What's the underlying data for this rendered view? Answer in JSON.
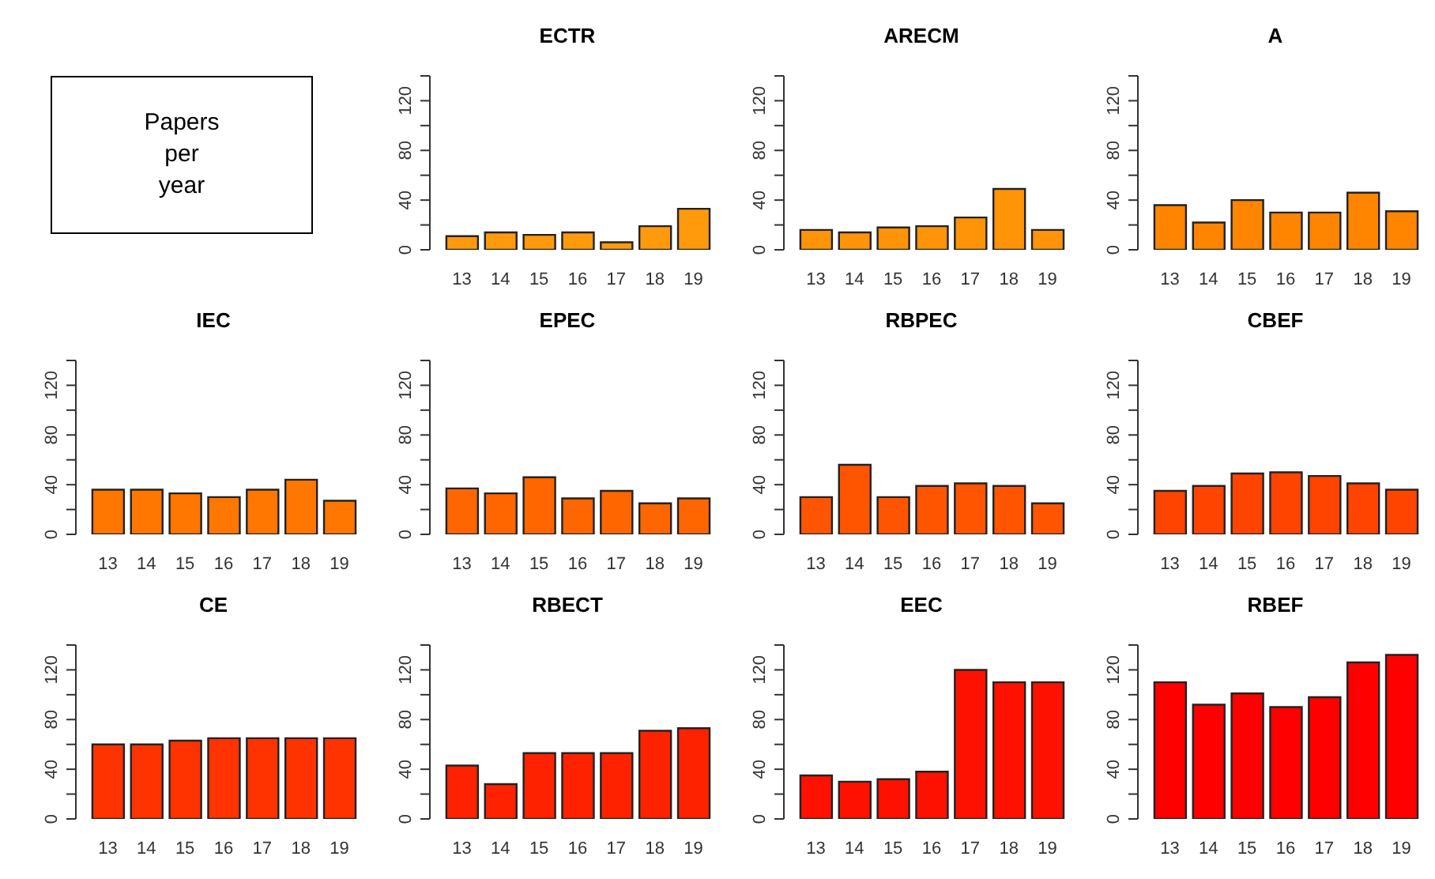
{
  "chart_data": [
    {
      "type": "other",
      "annotations": [
        "Papers per year"
      ]
    },
    {
      "type": "bar",
      "title": "ECTR",
      "categories": [
        "13",
        "14",
        "15",
        "16",
        "17",
        "18",
        "19"
      ],
      "values": [
        11,
        14,
        12,
        14,
        6,
        19,
        33
      ],
      "color": "#ff9a0d",
      "ylim": [
        0,
        140
      ],
      "yticks": [
        0,
        {
          "value": 20,
          "label": null
        },
        40,
        {
          "value": 60,
          "label": null
        },
        80,
        {
          "value": 100,
          "label": null
        },
        120,
        {
          "value": 140,
          "label": null
        }
      ]
    },
    {
      "type": "bar",
      "title": "ARECM",
      "categories": [
        "13",
        "14",
        "15",
        "16",
        "17",
        "18",
        "19"
      ],
      "values": [
        16,
        14,
        18,
        19,
        26,
        49,
        16
      ],
      "color": "#ff9408",
      "ylim": [
        0,
        140
      ],
      "yticks": [
        0,
        {
          "value": 20,
          "label": null
        },
        40,
        {
          "value": 60,
          "label": null
        },
        80,
        {
          "value": 100,
          "label": null
        },
        120,
        {
          "value": 140,
          "label": null
        }
      ]
    },
    {
      "type": "bar",
      "title": "A",
      "categories": [
        "13",
        "14",
        "15",
        "16",
        "17",
        "18",
        "19"
      ],
      "values": [
        36,
        22,
        40,
        30,
        30,
        46,
        31
      ],
      "color": "#ff8500",
      "ylim": [
        0,
        140
      ],
      "yticks": [
        0,
        {
          "value": 20,
          "label": null
        },
        40,
        {
          "value": 60,
          "label": null
        },
        80,
        {
          "value": 100,
          "label": null
        },
        120,
        {
          "value": 140,
          "label": null
        }
      ]
    },
    {
      "type": "bar",
      "title": "IEC",
      "categories": [
        "13",
        "14",
        "15",
        "16",
        "17",
        "18",
        "19"
      ],
      "values": [
        36,
        36,
        33,
        30,
        36,
        44,
        27
      ],
      "color": "#ff7700",
      "ylim": [
        0,
        140
      ],
      "yticks": [
        0,
        {
          "value": 20,
          "label": null
        },
        40,
        {
          "value": 60,
          "label": null
        },
        80,
        {
          "value": 100,
          "label": null
        },
        120,
        {
          "value": 140,
          "label": null
        }
      ]
    },
    {
      "type": "bar",
      "title": "EPEC",
      "categories": [
        "13",
        "14",
        "15",
        "16",
        "17",
        "18",
        "19"
      ],
      "values": [
        37,
        33,
        46,
        29,
        35,
        25,
        29
      ],
      "color": "#ff6600",
      "ylim": [
        0,
        140
      ],
      "yticks": [
        0,
        {
          "value": 20,
          "label": null
        },
        40,
        {
          "value": 60,
          "label": null
        },
        80,
        {
          "value": 100,
          "label": null
        },
        120,
        {
          "value": 140,
          "label": null
        }
      ]
    },
    {
      "type": "bar",
      "title": "RBPEC",
      "categories": [
        "13",
        "14",
        "15",
        "16",
        "17",
        "18",
        "19"
      ],
      "values": [
        30,
        56,
        30,
        39,
        41,
        39,
        25
      ],
      "color": "#ff5500",
      "ylim": [
        0,
        140
      ],
      "yticks": [
        0,
        {
          "value": 20,
          "label": null
        },
        40,
        {
          "value": 60,
          "label": null
        },
        80,
        {
          "value": 100,
          "label": null
        },
        120,
        {
          "value": 140,
          "label": null
        }
      ]
    },
    {
      "type": "bar",
      "title": "CBEF",
      "categories": [
        "13",
        "14",
        "15",
        "16",
        "17",
        "18",
        "19"
      ],
      "values": [
        35,
        39,
        49,
        50,
        47,
        41,
        36
      ],
      "color": "#ff4400",
      "ylim": [
        0,
        140
      ],
      "yticks": [
        0,
        {
          "value": 20,
          "label": null
        },
        40,
        {
          "value": 60,
          "label": null
        },
        80,
        {
          "value": 100,
          "label": null
        },
        120,
        {
          "value": 140,
          "label": null
        }
      ]
    },
    {
      "type": "bar",
      "title": "CE",
      "categories": [
        "13",
        "14",
        "15",
        "16",
        "17",
        "18",
        "19"
      ],
      "values": [
        60,
        60,
        63,
        65,
        65,
        65,
        65
      ],
      "color": "#ff3300",
      "ylim": [
        0,
        140
      ],
      "yticks": [
        0,
        {
          "value": 20,
          "label": null
        },
        40,
        {
          "value": 60,
          "label": null
        },
        80,
        {
          "value": 100,
          "label": null
        },
        120,
        {
          "value": 140,
          "label": null
        }
      ]
    },
    {
      "type": "bar",
      "title": "RBECT",
      "categories": [
        "13",
        "14",
        "15",
        "16",
        "17",
        "18",
        "19"
      ],
      "values": [
        43,
        28,
        53,
        53,
        53,
        71,
        73
      ],
      "color": "#ff2200",
      "ylim": [
        0,
        140
      ],
      "yticks": [
        0,
        {
          "value": 20,
          "label": null
        },
        40,
        {
          "value": 60,
          "label": null
        },
        80,
        {
          "value": 100,
          "label": null
        },
        120,
        {
          "value": 140,
          "label": null
        }
      ]
    },
    {
      "type": "bar",
      "title": "EEC",
      "categories": [
        "13",
        "14",
        "15",
        "16",
        "17",
        "18",
        "19"
      ],
      "values": [
        35,
        30,
        32,
        38,
        120,
        110,
        110
      ],
      "color": "#ff1100",
      "ylim": [
        0,
        140
      ],
      "yticks": [
        0,
        {
          "value": 20,
          "label": null
        },
        40,
        {
          "value": 60,
          "label": null
        },
        80,
        {
          "value": 100,
          "label": null
        },
        120,
        {
          "value": 140,
          "label": null
        }
      ]
    },
    {
      "type": "bar",
      "title": "RBEF",
      "categories": [
        "13",
        "14",
        "15",
        "16",
        "17",
        "18",
        "19"
      ],
      "values": [
        110,
        92,
        101,
        90,
        98,
        126,
        132
      ],
      "color": "#ff0000",
      "ylim": [
        0,
        140
      ],
      "yticks": [
        0,
        {
          "value": 20,
          "label": null
        },
        40,
        {
          "value": 60,
          "label": null
        },
        80,
        {
          "value": 100,
          "label": null
        },
        120,
        {
          "value": 140,
          "label": null
        }
      ]
    }
  ]
}
